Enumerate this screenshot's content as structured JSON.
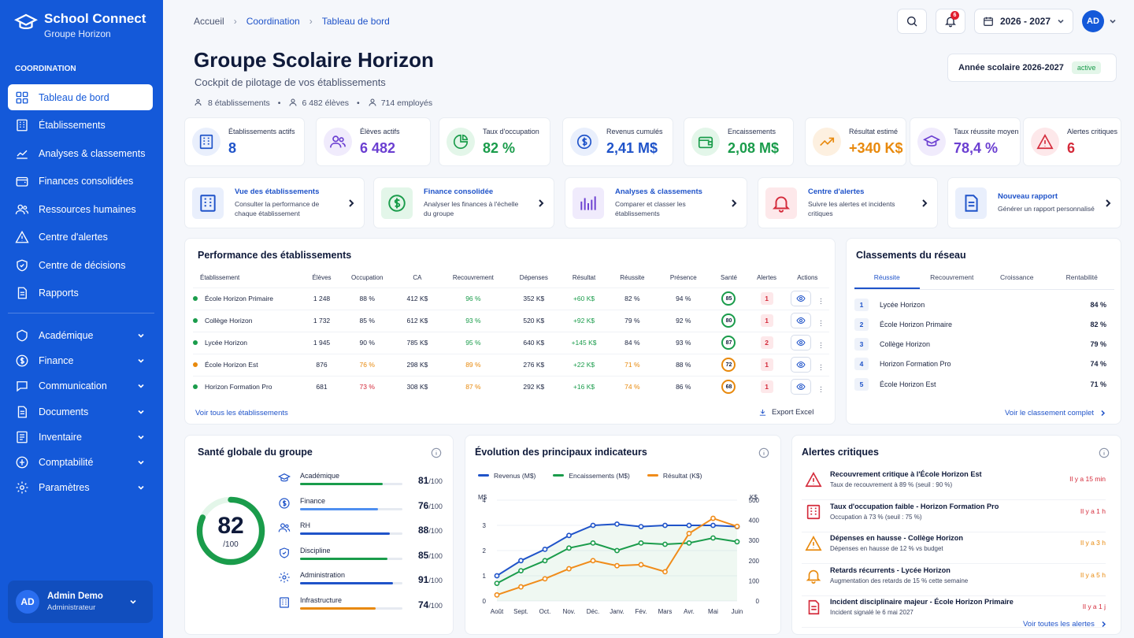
{
  "app": {
    "name": "School Connect",
    "subtitle": "Groupe Horizon",
    "section": "COORDINATION"
  },
  "nav_primary": [
    {
      "label": "Tableau de bord",
      "icon": "dashboard-icon",
      "active": true
    },
    {
      "label": "Établissements",
      "icon": "building-icon"
    },
    {
      "label": "Analyses & classements",
      "icon": "chart-line-icon"
    },
    {
      "label": "Finances consolidées",
      "icon": "wallet-icon"
    },
    {
      "label": "Ressources humaines",
      "icon": "users-icon"
    },
    {
      "label": "Centre d'alertes",
      "icon": "alert-icon"
    },
    {
      "label": "Centre de décisions",
      "icon": "shield-icon"
    },
    {
      "label": "Rapports",
      "icon": "report-icon"
    }
  ],
  "nav_secondary": [
    {
      "label": "Académique",
      "icon": "academic-icon"
    },
    {
      "label": "Finance",
      "icon": "finance-icon"
    },
    {
      "label": "Communication",
      "icon": "chat-icon"
    },
    {
      "label": "Documents",
      "icon": "document-icon"
    },
    {
      "label": "Inventaire",
      "icon": "inventory-icon"
    },
    {
      "label": "Comptabilité",
      "icon": "calculator-icon"
    },
    {
      "label": "Paramètres",
      "icon": "gear-icon"
    }
  ],
  "user": {
    "initials": "AD",
    "name": "Admin Demo",
    "role": "Administrateur"
  },
  "breadcrumb": [
    "Accueil",
    "Coordination",
    "Tableau de bord"
  ],
  "topbar": {
    "notifications": "6",
    "year": "2026 - 2027",
    "initials": "AD"
  },
  "header": {
    "title": "Groupe Scolaire Horizon",
    "subtitle": "Cockpit de pilotage de vos établissements",
    "meta": [
      "8 établissements",
      "6 482 élèves",
      "714 employés"
    ],
    "year_label": "Année scolaire 2026-2027",
    "year_status": "active"
  },
  "kpis": [
    {
      "label": "Établissements actifs",
      "value": "8",
      "color": "#1f53c9",
      "bg": "#e9effc"
    },
    {
      "label": "Élèves actifs",
      "value": "6 482",
      "color": "#6b3fd1",
      "bg": "#f0ebfc"
    },
    {
      "label": "Taux d'occupation",
      "value": "82 %",
      "color": "#1a9c4b",
      "bg": "#e3f6e9"
    },
    {
      "label": "Revenus cumulés",
      "value": "2,41 M$",
      "color": "#1f53c9",
      "bg": "#e9effc"
    },
    {
      "label": "Encaissements",
      "value": "2,08 M$",
      "color": "#1a9c4b",
      "bg": "#e3f6e9"
    },
    {
      "label": "Résultat estimé",
      "value": "+340 K$",
      "color": "#e8890c",
      "bg": "#fdf0e0"
    },
    {
      "label": "Taux réussite moyen",
      "value": "78,4 %",
      "color": "#6b3fd1",
      "bg": "#f0ebfc"
    },
    {
      "label": "Alertes critiques",
      "value": "6",
      "color": "#d42a3a",
      "bg": "#fde8ea"
    }
  ],
  "quick_actions": [
    {
      "title": "Vue des établissements",
      "desc": "Consulter la performance de chaque établissement",
      "color": "#1f53c9",
      "bg": "#e9effc"
    },
    {
      "title": "Finance consolidée",
      "desc": "Analyser les finances à l'échelle du groupe",
      "color": "#1a9c4b",
      "bg": "#e3f6e9"
    },
    {
      "title": "Analyses & classements",
      "desc": "Comparer et classer les établissements",
      "color": "#6b3fd1",
      "bg": "#f0ebfc"
    },
    {
      "title": "Centre d'alertes",
      "desc": "Suivre les alertes et incidents critiques",
      "color": "#d42a3a",
      "bg": "#fde8ea"
    },
    {
      "title": "Nouveau rapport",
      "desc": "Générer un rapport personnalisé",
      "color": "#1f53c9",
      "bg": "#e9effc"
    }
  ],
  "performance": {
    "title": "Performance des établissements",
    "columns": [
      "Établissement",
      "Élèves",
      "Occupation",
      "CA",
      "Recouvrement",
      "Dépenses",
      "Résultat",
      "Réussite",
      "Présence",
      "Santé",
      "Alertes",
      "Actions"
    ],
    "rows": [
      {
        "name": "École Horizon Primaire",
        "status": "green",
        "eleves": "1 248",
        "occ": "88 %",
        "occ_c": "",
        "ca": "412 K$",
        "rec": "96 %",
        "rec_c": "green",
        "dep": "352 K$",
        "res": "+60 K$",
        "reu": "82 %",
        "reu_c": "",
        "pres": "94 %",
        "sante": "85",
        "sante_c": "#1a9c4b",
        "alertes": "1"
      },
      {
        "name": "Collège Horizon",
        "status": "green",
        "eleves": "1 732",
        "occ": "85 %",
        "occ_c": "",
        "ca": "612 K$",
        "rec": "93 %",
        "rec_c": "green",
        "dep": "520 K$",
        "res": "+92 K$",
        "reu": "79 %",
        "reu_c": "",
        "pres": "92 %",
        "sante": "80",
        "sante_c": "#1a9c4b",
        "alertes": "1"
      },
      {
        "name": "Lycée Horizon",
        "status": "green",
        "eleves": "1 945",
        "occ": "90 %",
        "occ_c": "",
        "ca": "785 K$",
        "rec": "95 %",
        "rec_c": "green",
        "dep": "640 K$",
        "res": "+145 K$",
        "reu": "84 %",
        "reu_c": "",
        "pres": "93 %",
        "sante": "87",
        "sante_c": "#1a9c4b",
        "alertes": "2"
      },
      {
        "name": "École Horizon Est",
        "status": "orange",
        "eleves": "876",
        "occ": "76 %",
        "occ_c": "orange",
        "ca": "298 K$",
        "rec": "89 %",
        "rec_c": "orange",
        "dep": "276 K$",
        "res": "+22 K$",
        "reu": "71 %",
        "reu_c": "orange",
        "pres": "88 %",
        "sante": "72",
        "sante_c": "#e8890c",
        "alertes": "1"
      },
      {
        "name": "Horizon Formation Pro",
        "status": "green",
        "eleves": "681",
        "occ": "73 %",
        "occ_c": "red",
        "ca": "308 K$",
        "rec": "87 %",
        "rec_c": "orange",
        "dep": "292 K$",
        "res": "+16 K$",
        "reu": "74 %",
        "reu_c": "orange",
        "pres": "86 %",
        "sante": "68",
        "sante_c": "#e8890c",
        "alertes": "1"
      }
    ],
    "link": "Voir tous les établissements",
    "export": "Export Excel"
  },
  "ranking": {
    "title": "Classements du réseau",
    "tabs": [
      "Réussite",
      "Recouvrement",
      "Croissance",
      "Rentabilité"
    ],
    "rows": [
      {
        "rank": "1",
        "name": "Lycée Horizon",
        "value": "84 %"
      },
      {
        "rank": "2",
        "name": "École Horizon Primaire",
        "value": "82 %"
      },
      {
        "rank": "3",
        "name": "Collège Horizon",
        "value": "79 %"
      },
      {
        "rank": "4",
        "name": "Horizon Formation Pro",
        "value": "74 %"
      },
      {
        "rank": "5",
        "name": "École Horizon Est",
        "value": "71 %"
      }
    ],
    "link": "Voir le classement complet"
  },
  "health": {
    "title": "Santé globale du groupe",
    "score": "82",
    "max": "/100",
    "score_fraction": 0.82,
    "rows": [
      {
        "label": "Académique",
        "value": "81",
        "max": "/100",
        "fraction": 0.81,
        "color": "#1a9c4b",
        "icon": "academic-icon"
      },
      {
        "label": "Finance",
        "value": "76",
        "max": "/100",
        "fraction": 0.76,
        "color": "#4f8ff0",
        "icon": "finance-icon"
      },
      {
        "label": "RH",
        "value": "88",
        "max": "/100",
        "fraction": 0.88,
        "color": "#1f53c9",
        "icon": "users-icon"
      },
      {
        "label": "Discipline",
        "value": "85",
        "max": "/100",
        "fraction": 0.85,
        "color": "#1a9c4b",
        "icon": "shield-icon"
      },
      {
        "label": "Administration",
        "value": "91",
        "max": "/100",
        "fraction": 0.91,
        "color": "#1f53c9",
        "icon": "gear-icon"
      },
      {
        "label": "Infrastructure",
        "value": "74",
        "max": "/100",
        "fraction": 0.74,
        "color": "#e8890c",
        "icon": "building-icon"
      }
    ]
  },
  "evolution": {
    "title": "Évolution des principaux indicateurs"
  },
  "chart_data": {
    "type": "line",
    "categories": [
      "Août",
      "Sept.",
      "Oct.",
      "Nov.",
      "Déc.",
      "Janv.",
      "Fév.",
      "Mars",
      "Avr.",
      "Mai",
      "Juin"
    ],
    "series": [
      {
        "name": "Revenus (M$)",
        "axis": "left",
        "color": "#1f53c9",
        "values": [
          1.0,
          1.6,
          2.05,
          2.6,
          3.0,
          3.05,
          2.95,
          3.0,
          3.0,
          3.0,
          2.95
        ]
      },
      {
        "name": "Encaissements (M$)",
        "axis": "left",
        "color": "#1a9c4b",
        "values": [
          0.7,
          1.2,
          1.6,
          2.1,
          2.3,
          2.0,
          2.3,
          2.25,
          2.3,
          2.5,
          2.35
        ]
      },
      {
        "name": "Résultat (K$)",
        "axis": "right",
        "color": "#f08c1a",
        "values": [
          30,
          70,
          110,
          160,
          200,
          175,
          180,
          145,
          335,
          410,
          370
        ]
      }
    ],
    "ylabel_left": "M$",
    "ylabel_right": "K$",
    "ylim_left": [
      0,
      4
    ],
    "yticks_left": [
      "0",
      "1",
      "2",
      "3",
      "4"
    ],
    "ylim_right": [
      0,
      500
    ],
    "yticks_right": [
      "0",
      "100",
      "200",
      "300",
      "400",
      "500"
    ],
    "legend": "top-left",
    "grid": true
  },
  "alerts": {
    "title": "Alertes critiques",
    "items": [
      {
        "title": "Recouvrement critique à l'École Horizon Est",
        "desc": "Taux de recouvrement à 89 % (seuil : 90 %)",
        "time": "Il y a 15 min",
        "color": "#d42a3a",
        "icon": "warning-icon"
      },
      {
        "title": "Taux d'occupation faible - Horizon Formation Pro",
        "desc": "Occupation à 73 % (seuil : 75 %)",
        "time": "Il y a 1 h",
        "color": "#d42a3a",
        "icon": "building-icon"
      },
      {
        "title": "Dépenses en hausse - Collège Horizon",
        "desc": "Dépenses en hausse de 12 % vs budget",
        "time": "Il y a 3 h",
        "color": "#e8890c",
        "icon": "warning-icon"
      },
      {
        "title": "Retards récurrents - Lycée Horizon",
        "desc": "Augmentation des retards de 15 % cette semaine",
        "time": "Il y a 5 h",
        "color": "#e8890c",
        "icon": "bell-icon"
      },
      {
        "title": "Incident disciplinaire majeur - École Horizon Primaire",
        "desc": "Incident signalé le 6 mai 2027",
        "time": "Il y a 1 j",
        "color": "#d42a3a",
        "icon": "document-icon"
      }
    ],
    "link": "Voir toutes les alertes"
  }
}
